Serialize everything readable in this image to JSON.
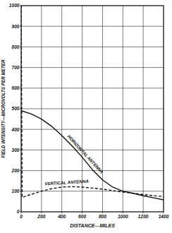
{
  "chart_data": {
    "type": "line",
    "x_label": "DISTANCE—MILES",
    "y_label": "FIELD INTENSITY—MICROVOLTS PER METER",
    "x": [
      0,
      10,
      100,
      200,
      300,
      400,
      500,
      600,
      700,
      800,
      900,
      1000,
      1100,
      1200,
      1300,
      1400
    ],
    "series": [
      {
        "name": "HORIZONTAL ANTENNA",
        "color": "#111111",
        "line_style": "solid",
        "values": [
          490,
          489,
          475,
          450,
          415,
          370,
          320,
          265,
          205,
          155,
          120,
          100,
          90,
          78,
          68,
          58
        ]
      },
      {
        "name": "VERTICAL ANTENNA",
        "color": "#111111",
        "line_style": "dashed",
        "values": [
          1000,
          70,
          85,
          100,
          112,
          120,
          122,
          120,
          115,
          110,
          103,
          96,
          90,
          84,
          78,
          74
        ]
      }
    ],
    "xlim": [
      0,
      1400
    ],
    "ylim": [
      0,
      1000
    ],
    "xticks": [
      0,
      200,
      400,
      600,
      800,
      1000,
      1200,
      1400
    ],
    "yticks": [
      0,
      100,
      200,
      300,
      400,
      500,
      600,
      700,
      800,
      900,
      1000
    ],
    "grid": true
  }
}
